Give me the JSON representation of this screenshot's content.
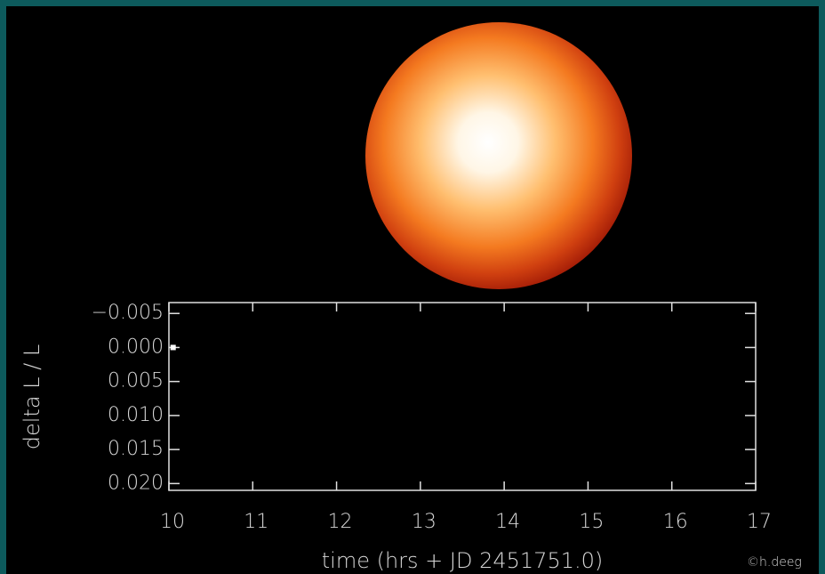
{
  "chart_data": {
    "type": "scatter",
    "x_label": "time (hrs + JD 2451751.0)",
    "y_label": "delta L / L",
    "credit": "©h.deeg",
    "xlim": [
      10,
      17
    ],
    "xticks": [
      10,
      11,
      12,
      13,
      14,
      15,
      16,
      17
    ],
    "ylim": [
      -0.0066,
      0.021
    ],
    "y_inverted": true,
    "yticks": [
      {
        "value": -0.005,
        "label": "−0.005"
      },
      {
        "value": 0,
        "label": "0.000"
      },
      {
        "value": 0.005,
        "label": "0.005"
      },
      {
        "value": 0.01,
        "label": "0.010"
      },
      {
        "value": 0.015,
        "label": "0.015"
      },
      {
        "value": 0.02,
        "label": "0.020"
      }
    ],
    "x": [
      10.05
    ],
    "values": [
      0
    ],
    "color": "#ffffff"
  }
}
